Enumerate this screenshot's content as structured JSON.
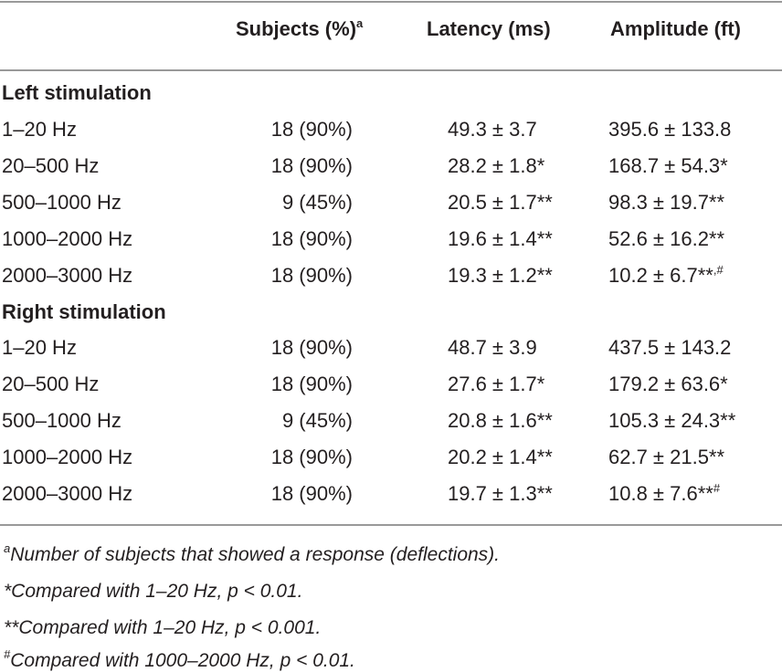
{
  "table": {
    "columns": [
      {
        "text": "Subjects (%)",
        "sup": "a"
      },
      "Latency (ms)",
      "Amplitude (ft)"
    ],
    "sections": [
      {
        "title": "Left stimulation",
        "rows": [
          [
            "1–20 Hz",
            "18 (90%)",
            "49.3 ± 3.7",
            "395.6 ± 133.8"
          ],
          [
            "20–500 Hz",
            "18 (90%)",
            "28.2 ± 1.8*",
            "168.7 ± 54.3*"
          ],
          [
            "500–1000 Hz",
            "9 (45%)",
            "20.5 ± 1.7**",
            "98.3 ± 19.7**"
          ],
          [
            "1000–2000 Hz",
            "18 (90%)",
            "19.6 ± 1.4**",
            "52.6 ± 16.2**"
          ],
          [
            "2000–3000 Hz",
            "18 (90%)",
            "19.3 ± 1.2**",
            {
              "text": "10.2 ± 6.7**",
              "sup": ",#"
            }
          ]
        ]
      },
      {
        "title": "Right stimulation",
        "rows": [
          [
            "1–20 Hz",
            "18 (90%)",
            "48.7 ± 3.9",
            "437.5 ± 143.2"
          ],
          [
            "20–500 Hz",
            "18 (90%)",
            "27.6 ± 1.7*",
            "179.2 ± 63.6*"
          ],
          [
            "500–1000 Hz",
            "9 (45%)",
            "20.8 ± 1.6**",
            "105.3 ± 24.3**"
          ],
          [
            "1000–2000 Hz",
            "18 (90%)",
            "20.2 ± 1.4**",
            "62.7 ± 21.5**"
          ],
          [
            "2000–3000 Hz",
            "18 (90%)",
            "19.7 ± 1.3**",
            {
              "text": "10.8 ± 7.6**",
              "sup": "#"
            }
          ]
        ]
      }
    ],
    "footnotes": [
      {
        "sup": "a",
        "text": "Number of subjects that showed a response (deflections)."
      },
      {
        "text": "*Compared with 1–20 Hz, p < 0.01."
      },
      {
        "text": "**Compared with 1–20 Hz, p < 0.001."
      },
      {
        "sup": "#",
        "text": "Compared with 1000–2000 Hz, p < 0.01."
      }
    ]
  }
}
